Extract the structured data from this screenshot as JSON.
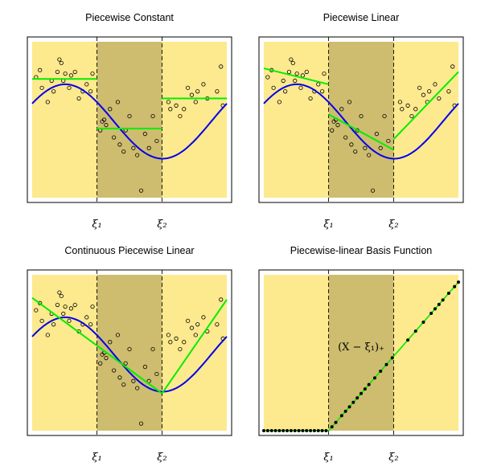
{
  "chart_data": [
    {
      "type": "scatter",
      "title": "Piecewise Constant",
      "knot_labels": [
        "ξ₁",
        "ξ₂"
      ],
      "knots": [
        0.333,
        0.667
      ],
      "xlim": [
        0,
        1
      ],
      "ylim": [
        -2.2,
        2.2
      ],
      "points": [
        [
          0.02,
          1.2
        ],
        [
          0.04,
          1.4
        ],
        [
          0.05,
          0.9
        ],
        [
          0.08,
          0.5
        ],
        [
          0.1,
          1.1
        ],
        [
          0.11,
          0.8
        ],
        [
          0.13,
          1.35
        ],
        [
          0.14,
          1.7
        ],
        [
          0.15,
          1.6
        ],
        [
          0.16,
          1.1
        ],
        [
          0.17,
          1.3
        ],
        [
          0.19,
          0.9
        ],
        [
          0.2,
          1.25
        ],
        [
          0.22,
          1.35
        ],
        [
          0.24,
          0.6
        ],
        [
          0.26,
          0.8
        ],
        [
          0.28,
          1.0
        ],
        [
          0.3,
          0.8
        ],
        [
          0.31,
          1.3
        ],
        [
          0.35,
          -0.3
        ],
        [
          0.36,
          -0.05
        ],
        [
          0.37,
          0.0
        ],
        [
          0.38,
          -0.15
        ],
        [
          0.4,
          0.3
        ],
        [
          0.42,
          -0.5
        ],
        [
          0.44,
          0.5
        ],
        [
          0.45,
          -0.7
        ],
        [
          0.47,
          -0.9
        ],
        [
          0.48,
          -0.3
        ],
        [
          0.5,
          0.1
        ],
        [
          0.52,
          -0.8
        ],
        [
          0.54,
          -1.0
        ],
        [
          0.56,
          -2.0
        ],
        [
          0.58,
          -0.4
        ],
        [
          0.6,
          -0.8
        ],
        [
          0.62,
          0.1
        ],
        [
          0.64,
          -0.6
        ],
        [
          0.7,
          0.5
        ],
        [
          0.71,
          0.3
        ],
        [
          0.74,
          0.4
        ],
        [
          0.76,
          0.1
        ],
        [
          0.78,
          0.3
        ],
        [
          0.8,
          0.9
        ],
        [
          0.82,
          0.7
        ],
        [
          0.84,
          0.5
        ],
        [
          0.85,
          0.8
        ],
        [
          0.88,
          1.0
        ],
        [
          0.9,
          0.6
        ],
        [
          0.95,
          0.8
        ],
        [
          0.97,
          1.5
        ],
        [
          0.98,
          0.4
        ]
      ],
      "true_function": "sin",
      "fit_segments": [
        [
          0.0,
          1.15,
          0.333,
          1.15
        ],
        [
          0.333,
          -0.25,
          0.667,
          -0.25
        ],
        [
          0.667,
          0.6,
          1.0,
          0.6
        ]
      ]
    },
    {
      "type": "scatter",
      "title": "Piecewise Linear",
      "knot_labels": [
        "ξ₁",
        "ξ₂"
      ],
      "knots": [
        0.333,
        0.667
      ],
      "xlim": [
        0,
        1
      ],
      "ylim": [
        -2.2,
        2.2
      ],
      "fit_segments": [
        [
          0.0,
          1.45,
          0.333,
          1.0
        ],
        [
          0.333,
          0.15,
          0.667,
          -0.85
        ],
        [
          0.667,
          -0.55,
          1.0,
          1.35
        ]
      ]
    },
    {
      "type": "scatter",
      "title": "Continuous Piecewise Linear",
      "knot_labels": [
        "ξ₁",
        "ξ₂"
      ],
      "knots": [
        0.333,
        0.667
      ],
      "xlim": [
        0,
        1
      ],
      "ylim": [
        -2.2,
        2.2
      ],
      "fit_segments": [
        [
          0.0,
          1.55,
          0.333,
          0.2
        ],
        [
          0.333,
          0.2,
          0.667,
          -1.15
        ],
        [
          0.667,
          -1.15,
          1.0,
          1.5
        ]
      ]
    },
    {
      "type": "line",
      "title": "Piecewise-linear Basis Function",
      "knot_labels": [
        "ξ₁",
        "ξ₂"
      ],
      "annotation": "(X − ξ₁)₊",
      "knots": [
        0.333,
        0.667
      ],
      "xlim": [
        0,
        1
      ],
      "ylim": [
        0,
        0.7
      ],
      "x": [
        0.0,
        0.02,
        0.04,
        0.06,
        0.08,
        0.1,
        0.12,
        0.14,
        0.16,
        0.18,
        0.2,
        0.22,
        0.24,
        0.26,
        0.28,
        0.3,
        0.32,
        0.35,
        0.37,
        0.4,
        0.42,
        0.44,
        0.46,
        0.48,
        0.5,
        0.52,
        0.54,
        0.57,
        0.6,
        0.63,
        0.66,
        0.74,
        0.78,
        0.82,
        0.86,
        0.88,
        0.9,
        0.92,
        0.95,
        0.98,
        1.0
      ]
    }
  ],
  "colors": {
    "band_light": "#fde98e",
    "band_dark": "#cebd6f",
    "truth": "#0000ee",
    "fit": "#00ee00",
    "points": "#000000"
  }
}
